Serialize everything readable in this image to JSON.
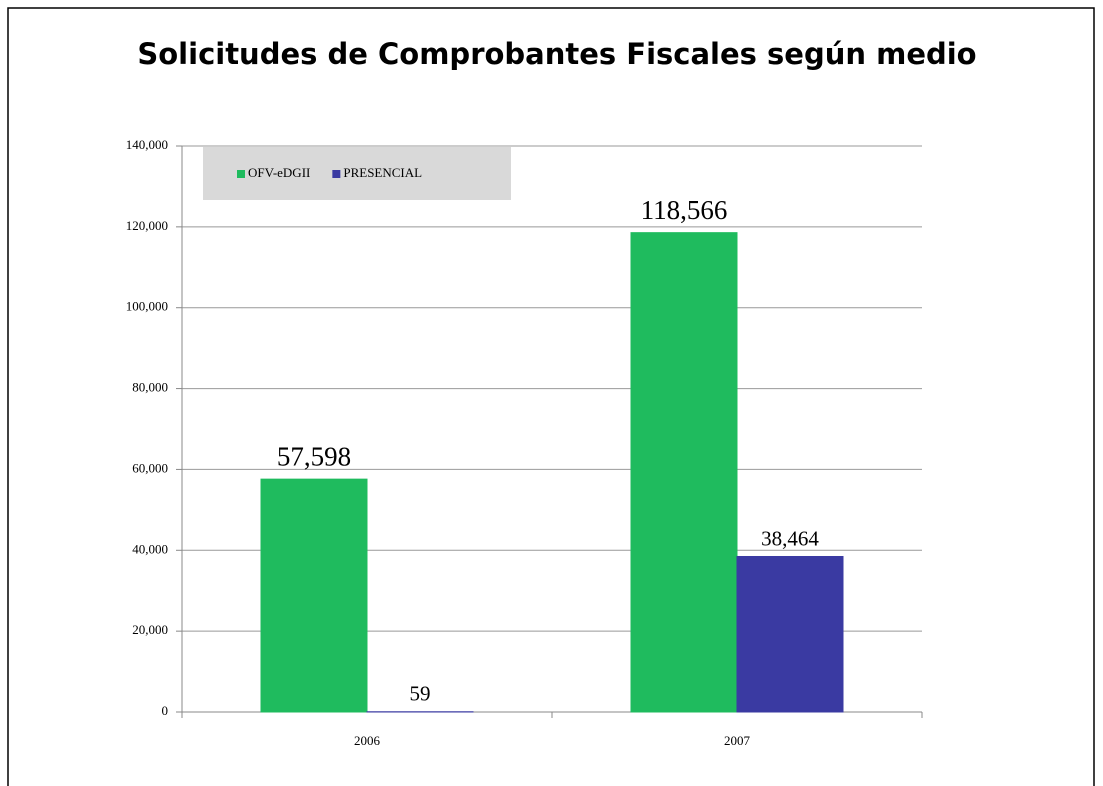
{
  "chart_data": {
    "type": "bar",
    "title": "Solicitudes de Comprobantes Fiscales según medio",
    "categories": [
      "2006",
      "2007"
    ],
    "series": [
      {
        "name": "OFV-eDGII",
        "color": "#1fbb5e",
        "values": [
          57598,
          118566
        ],
        "value_labels": [
          "57,598",
          "118,566"
        ]
      },
      {
        "name": "PRESENCIAL",
        "color": "#3a3aa2",
        "values": [
          59,
          38464
        ],
        "value_labels": [
          "59",
          "38,464"
        ]
      }
    ],
    "ylim": [
      0,
      140000
    ],
    "yticks": [
      0,
      {
        "value": 20000,
        "label": "20,000"
      },
      {
        "value": 40000,
        "label": "40,000"
      },
      {
        "value": 60000,
        "label": "60,000"
      },
      {
        "value": 80000,
        "label": "80,000"
      },
      {
        "value": 100000,
        "label": "100,000"
      },
      {
        "value": 120000,
        "label": "120,000"
      },
      {
        "value": 140000,
        "label": "140,000"
      }
    ],
    "grid": true,
    "legend": "upper left"
  }
}
